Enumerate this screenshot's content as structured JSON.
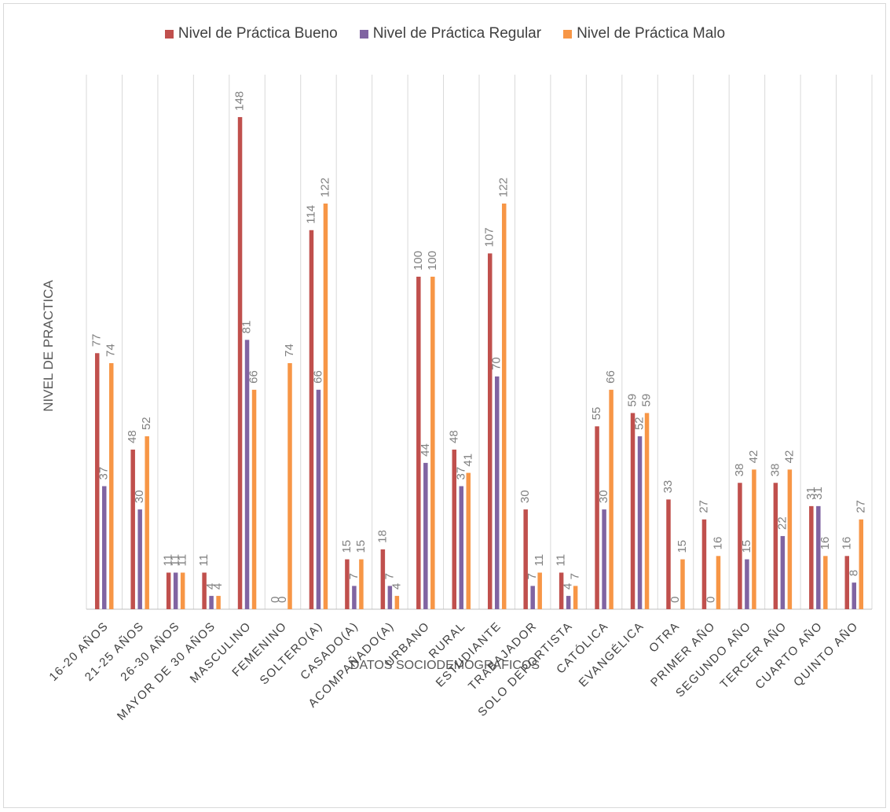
{
  "chart_data": {
    "type": "bar",
    "title": "",
    "xlabel": "DATOS SOCIODEMOGRAFICOS",
    "ylabel": "NIVEL DE PRACTICA",
    "legend_position": "top",
    "grid": "vertical category separators",
    "ylim": [
      0,
      150
    ],
    "categories": [
      "16-20 AÑOS",
      "21-25 AÑOS",
      "26-30 AÑOS",
      "MAYOR DE 30 AÑOS",
      "MASCULINO",
      "FEMENINO",
      "SOLTERO(A)",
      "CASADO(A)",
      "ACOMPAÑADO(A)",
      "URBANO",
      "RURAL",
      "ESTUDIANTE",
      "TRABAJADOR",
      "SOLO DEPORTISTA",
      "CATÓLICA",
      "EVANGÉLICA",
      "OTRA",
      "PRIMER AÑO",
      "SEGUNDO AÑO",
      "TERCER AÑO",
      "CUARTO AÑO",
      "QUINTO AÑO"
    ],
    "series": [
      {
        "name": "Nivel de Práctica Bueno",
        "color": "#c0504d",
        "values": [
          77,
          48,
          11,
          11,
          148,
          0,
          114,
          15,
          18,
          100,
          48,
          107,
          30,
          11,
          55,
          59,
          33,
          27,
          38,
          38,
          31,
          16
        ]
      },
      {
        "name": "Nivel de Práctica Regular",
        "color": "#8064a2",
        "values": [
          37,
          30,
          11,
          4,
          81,
          0,
          66,
          7,
          7,
          44,
          37,
          70,
          7,
          4,
          30,
          52,
          0,
          0,
          15,
          22,
          31,
          8
        ]
      },
      {
        "name": "Nivel de Práctica Malo",
        "color": "#f79646",
        "values": [
          74,
          52,
          11,
          4,
          66,
          74,
          122,
          15,
          4,
          100,
          41,
          122,
          11,
          7,
          66,
          59,
          15,
          16,
          42,
          42,
          16,
          27
        ]
      }
    ]
  }
}
